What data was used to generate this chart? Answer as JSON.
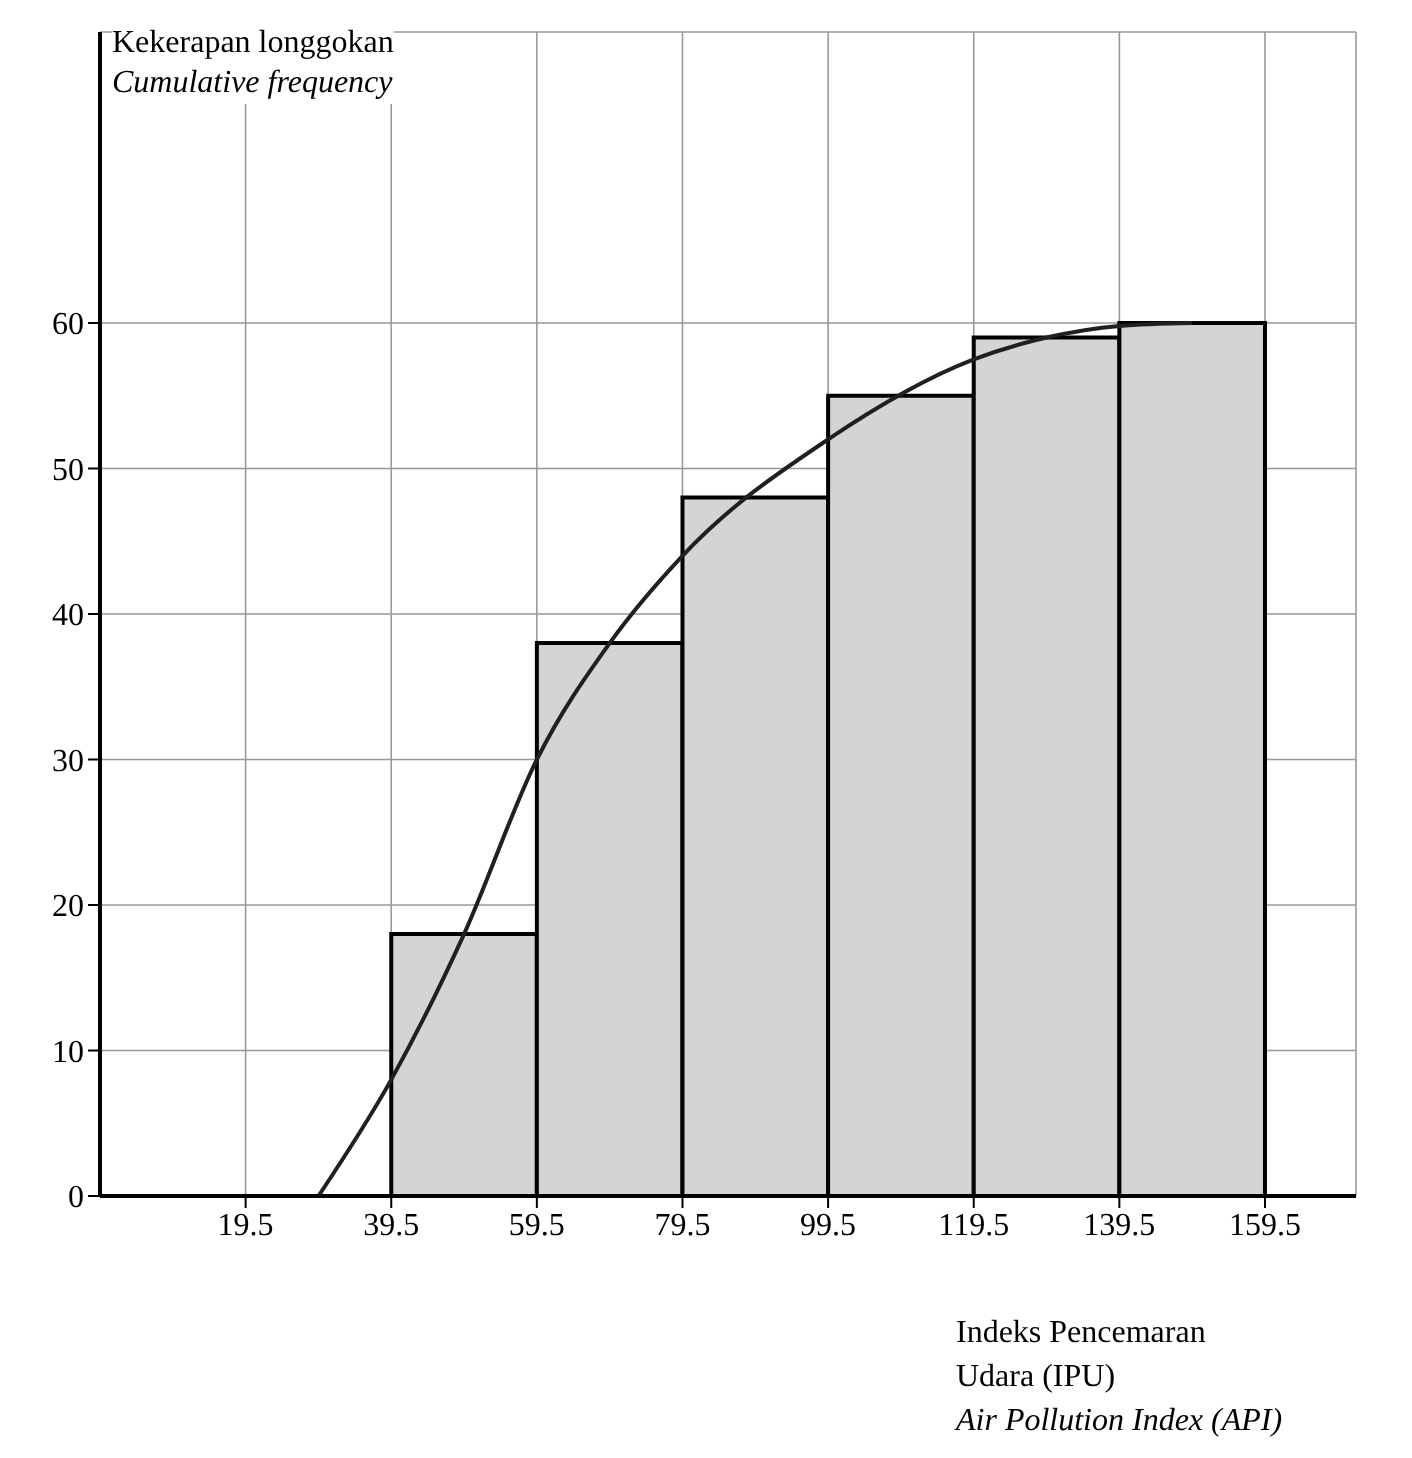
{
  "chart_data": {
    "type": "histogram",
    "ylabel": "Kekerapan longgokan\nCumulative frequency",
    "xlabel": "Indeks Pencemaran\nUdara (IPU)\nAir Pollution Index (API)",
    "xlim": [
      -0.5,
      172
    ],
    "xticks": [
      19.5,
      39.5,
      59.5,
      79.5,
      99.5,
      119.5,
      139.5,
      159.5
    ],
    "ylim": [
      0,
      80
    ],
    "yticks": [
      0,
      10,
      20,
      30,
      40,
      50,
      60
    ],
    "grid": true,
    "series": [
      {
        "bins": [
          39.5,
          59.5,
          79.5,
          99.5,
          119.5,
          139.5,
          159.5
        ],
        "values": [
          18,
          38,
          48,
          55,
          59,
          60
        ],
        "color": "#d4d4d4"
      },
      {
        "type": "line",
        "x": [
          29.5,
          39.5,
          49.5,
          59.5,
          69.5,
          79.5,
          99.5,
          119.5,
          129.5,
          139.5,
          149.5
        ],
        "values": [
          0,
          8,
          18,
          30,
          38,
          44,
          52,
          57.5,
          59,
          59.8,
          60
        ],
        "color": "#231f20"
      }
    ]
  }
}
